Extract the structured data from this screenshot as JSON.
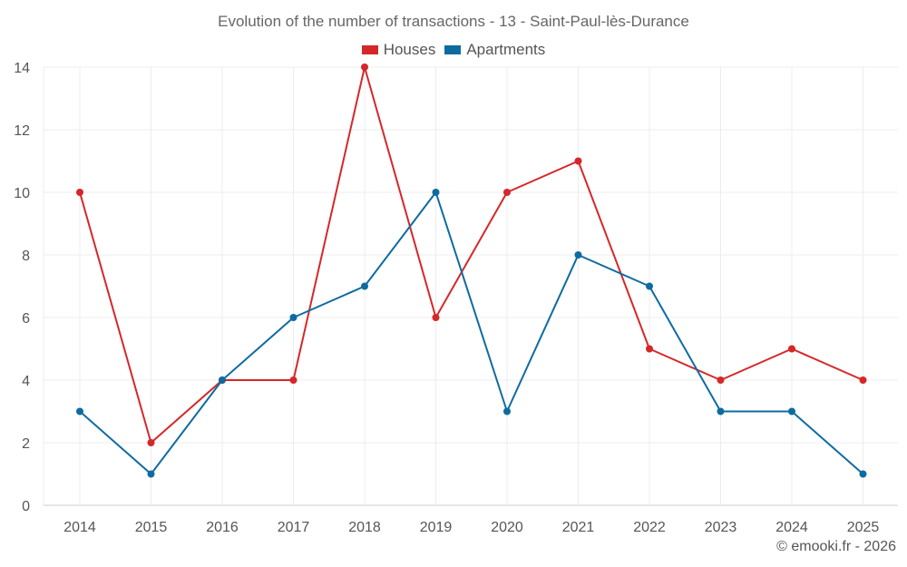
{
  "chart_data": {
    "type": "line",
    "title": "Evolution of the number of transactions - 13 - Saint-Paul-lès-Durance",
    "xlabel": "",
    "ylabel": "",
    "categories": [
      "2014",
      "2015",
      "2016",
      "2017",
      "2018",
      "2019",
      "2020",
      "2021",
      "2022",
      "2023",
      "2024",
      "2025"
    ],
    "ylim": [
      0,
      14
    ],
    "yticks": [
      0,
      2,
      4,
      6,
      8,
      10,
      12,
      14
    ],
    "grid": true,
    "legend_position": "top-center",
    "series": [
      {
        "name": "Houses",
        "color": "#d62728",
        "values": [
          10,
          2,
          4,
          4,
          14,
          6,
          10,
          11,
          5,
          4,
          5,
          4
        ]
      },
      {
        "name": "Apartments",
        "color": "#0e6ba0",
        "values": [
          3,
          1,
          4,
          6,
          7,
          10,
          3,
          8,
          7,
          3,
          3,
          1
        ]
      }
    ]
  },
  "credit": "© emooki.fr - 2026"
}
